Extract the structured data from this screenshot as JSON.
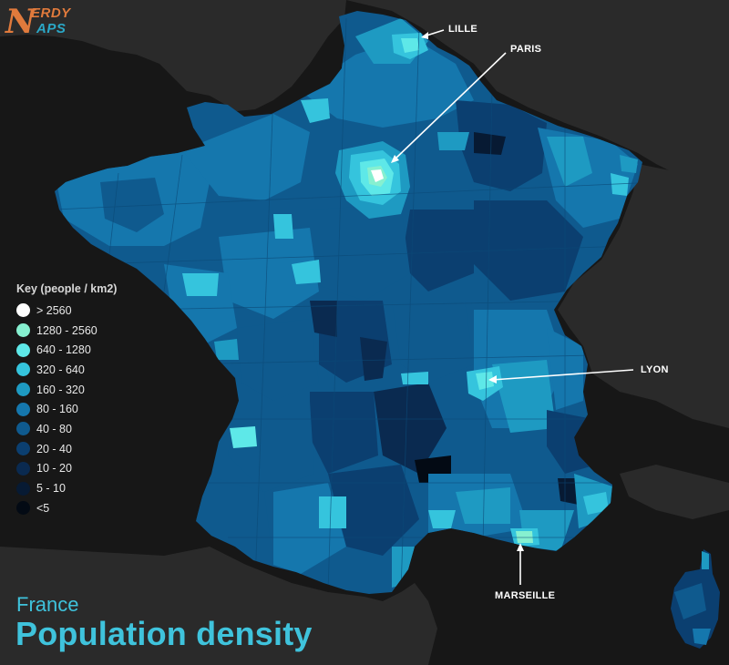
{
  "logo": {
    "letter": "N",
    "line1": "ERDY",
    "line2": "APS",
    "brand_orange": "#e07a3c",
    "brand_blue": "#2aa8c7"
  },
  "title": {
    "country": "France",
    "subtitle": "Population density"
  },
  "legend": {
    "title": "Key (people / km2)",
    "items": [
      {
        "label": "> 2560",
        "color": "#ffffff"
      },
      {
        "label": "1280 - 2560",
        "color": "#86f0d0"
      },
      {
        "label": "640 - 1280",
        "color": "#5ee8e8"
      },
      {
        "label": "320 - 640",
        "color": "#35c4dd"
      },
      {
        "label": "160 - 320",
        "color": "#1e9ac2"
      },
      {
        "label": "80 - 160",
        "color": "#1577ad"
      },
      {
        "label": "40 - 80",
        "color": "#0f5a8e"
      },
      {
        "label": "20 - 40",
        "color": "#0b3f70"
      },
      {
        "label": "10 - 20",
        "color": "#0a2a50"
      },
      {
        "label": "5 - 10",
        "color": "#071a33"
      },
      {
        "label": "<5",
        "color": "#030a14"
      }
    ]
  },
  "cities": [
    {
      "name": "LILLE"
    },
    {
      "name": "PARIS"
    },
    {
      "name": "LYON"
    },
    {
      "name": "MARSEILLE"
    }
  ],
  "colors": {
    "background": "#171717",
    "neighbor_land": "#2a2a2a",
    "accent_title": "#3fc3dc"
  }
}
